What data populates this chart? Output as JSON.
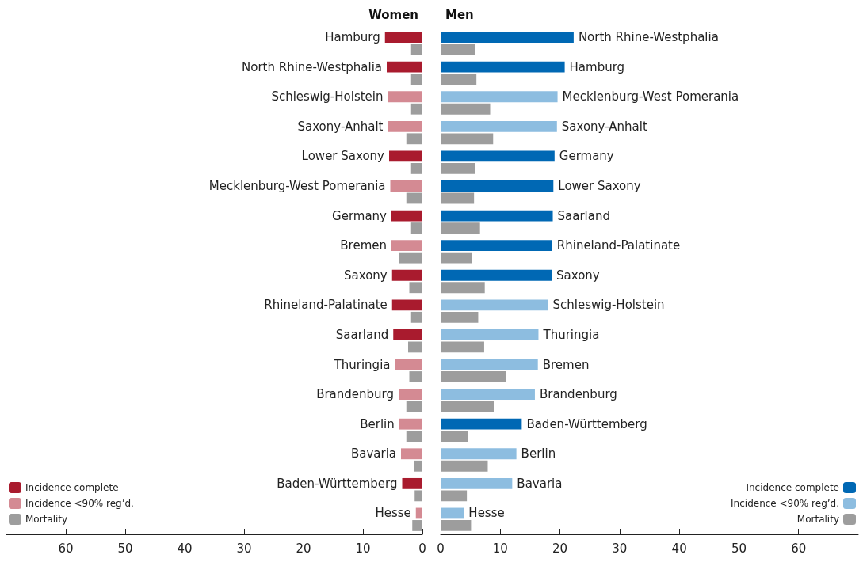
{
  "chart_data": [
    {
      "type": "bar",
      "orientation": "horizontal",
      "title": "Women",
      "categories": [
        "Hamburg",
        "North Rhine-Westphalia",
        "Schleswig-Holstein",
        "Saxony-Anhalt",
        "Lower Saxony",
        "Mecklenburg-West Pomerania",
        "Germany",
        "Bremen",
        "Saxony",
        "Rhineland-Palatinate",
        "Saarland",
        "Thuringia",
        "Brandenburg",
        "Berlin",
        "Bavaria",
        "Baden-Württemberg",
        "Hesse"
      ],
      "series": [
        {
          "name": "Incidence complete",
          "color": "#a91b2e",
          "values": [
            6.3,
            6.0,
            null,
            null,
            5.6,
            null,
            5.2,
            null,
            5.1,
            5.1,
            4.9,
            null,
            null,
            null,
            null,
            3.4,
            null
          ]
        },
        {
          "name": "Incidence <90% reg’d.",
          "color": "#d48a93",
          "values": [
            null,
            null,
            5.8,
            5.8,
            null,
            5.4,
            null,
            5.2,
            null,
            null,
            null,
            4.6,
            4.0,
            3.9,
            3.6,
            null,
            1.1
          ]
        },
        {
          "name": "Mortality",
          "color": "#9d9d9d",
          "values": [
            1.9,
            1.9,
            1.9,
            2.7,
            1.9,
            2.7,
            1.9,
            3.9,
            2.2,
            1.9,
            2.4,
            2.2,
            2.7,
            2.7,
            1.4,
            1.3,
            1.7
          ]
        }
      ],
      "xlim": [
        70,
        0
      ],
      "xticks": [
        0,
        10,
        20,
        30,
        40,
        50,
        60
      ],
      "grid": false,
      "legend": "bottom left"
    },
    {
      "type": "bar",
      "orientation": "horizontal",
      "title": "Men",
      "categories": [
        "North Rhine-Westphalia",
        "Hamburg",
        "Mecklenburg-West Pomerania",
        "Saxony-Anhalt",
        "Germany",
        "Lower Saxony",
        "Saarland",
        "Rhineland-Palatinate",
        "Saxony",
        "Schleswig-Holstein",
        "Thuringia",
        "Bremen",
        "Brandenburg",
        "Baden-Württemberg",
        "Berlin",
        "Bavaria",
        "Hesse"
      ],
      "series": [
        {
          "name": "Incidence complete",
          "color": "#0068b4",
          "values": [
            22.3,
            20.8,
            null,
            null,
            19.1,
            18.9,
            18.8,
            18.7,
            18.6,
            null,
            null,
            null,
            null,
            13.6,
            null,
            null,
            null
          ]
        },
        {
          "name": "Incidence <90% reg’d.",
          "color": "#8dbde0",
          "values": [
            null,
            null,
            19.6,
            19.5,
            null,
            null,
            null,
            null,
            null,
            18.0,
            16.4,
            16.3,
            15.8,
            null,
            12.7,
            12.0,
            3.9
          ]
        },
        {
          "name": "Mortality",
          "color": "#9d9d9d",
          "values": [
            5.8,
            6.0,
            8.3,
            8.8,
            5.8,
            5.6,
            6.6,
            5.2,
            7.4,
            6.3,
            7.3,
            10.9,
            8.9,
            4.6,
            7.9,
            4.4,
            5.1
          ]
        }
      ],
      "xlim": [
        0,
        70
      ],
      "xticks": [
        0,
        10,
        20,
        30,
        40,
        50,
        60
      ],
      "grid": false,
      "legend": "bottom right"
    }
  ]
}
